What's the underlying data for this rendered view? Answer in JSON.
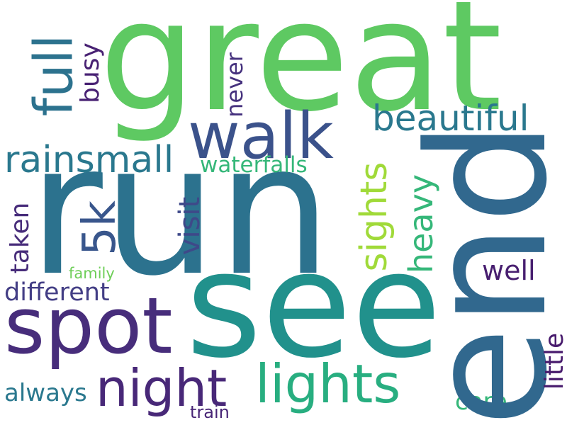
{
  "words": {
    "great": {
      "text": "great",
      "color": "#5ec962"
    },
    "run": {
      "text": "run",
      "color": "#2c728e"
    },
    "see": {
      "text": "see",
      "color": "#21918c"
    },
    "end": {
      "text": "end",
      "color": "#31688e"
    },
    "walk": {
      "text": "walk",
      "color": "#3b528b"
    },
    "full": {
      "text": "full",
      "color": "#2c728e"
    },
    "spot": {
      "text": "spot",
      "color": "#472d7b"
    },
    "night": {
      "text": "night",
      "color": "#482878"
    },
    "lights": {
      "text": "lights",
      "color": "#28ae80"
    },
    "beautiful": {
      "text": "beautiful",
      "color": "#2a788e"
    },
    "rainsmall": {
      "text": "rainsmall",
      "color": "#2a788e"
    },
    "waterfalls": {
      "text": "waterfalls",
      "color": "#35b779"
    },
    "busy": {
      "text": "busy",
      "color": "#482173"
    },
    "never": {
      "text": "never",
      "color": "#46327e"
    },
    "5k": {
      "text": "5k",
      "color": "#39568c"
    },
    "sights": {
      "text": "sights",
      "color": "#a0da39"
    },
    "heavy": {
      "text": "heavy",
      "color": "#35b779"
    },
    "visit": {
      "text": "visit",
      "color": "#3e4989"
    },
    "taken": {
      "text": "taken",
      "color": "#472c7a"
    },
    "family": {
      "text": "family",
      "color": "#6ece58"
    },
    "different": {
      "text": "different",
      "color": "#433e85"
    },
    "well": {
      "text": "well",
      "color": "#481f70"
    },
    "little": {
      "text": "little",
      "color": "#481b6d"
    },
    "always": {
      "text": "always",
      "color": "#2a788e"
    },
    "care": {
      "text": "care",
      "color": "#35b779"
    },
    "train": {
      "text": "train",
      "color": "#482576"
    }
  }
}
